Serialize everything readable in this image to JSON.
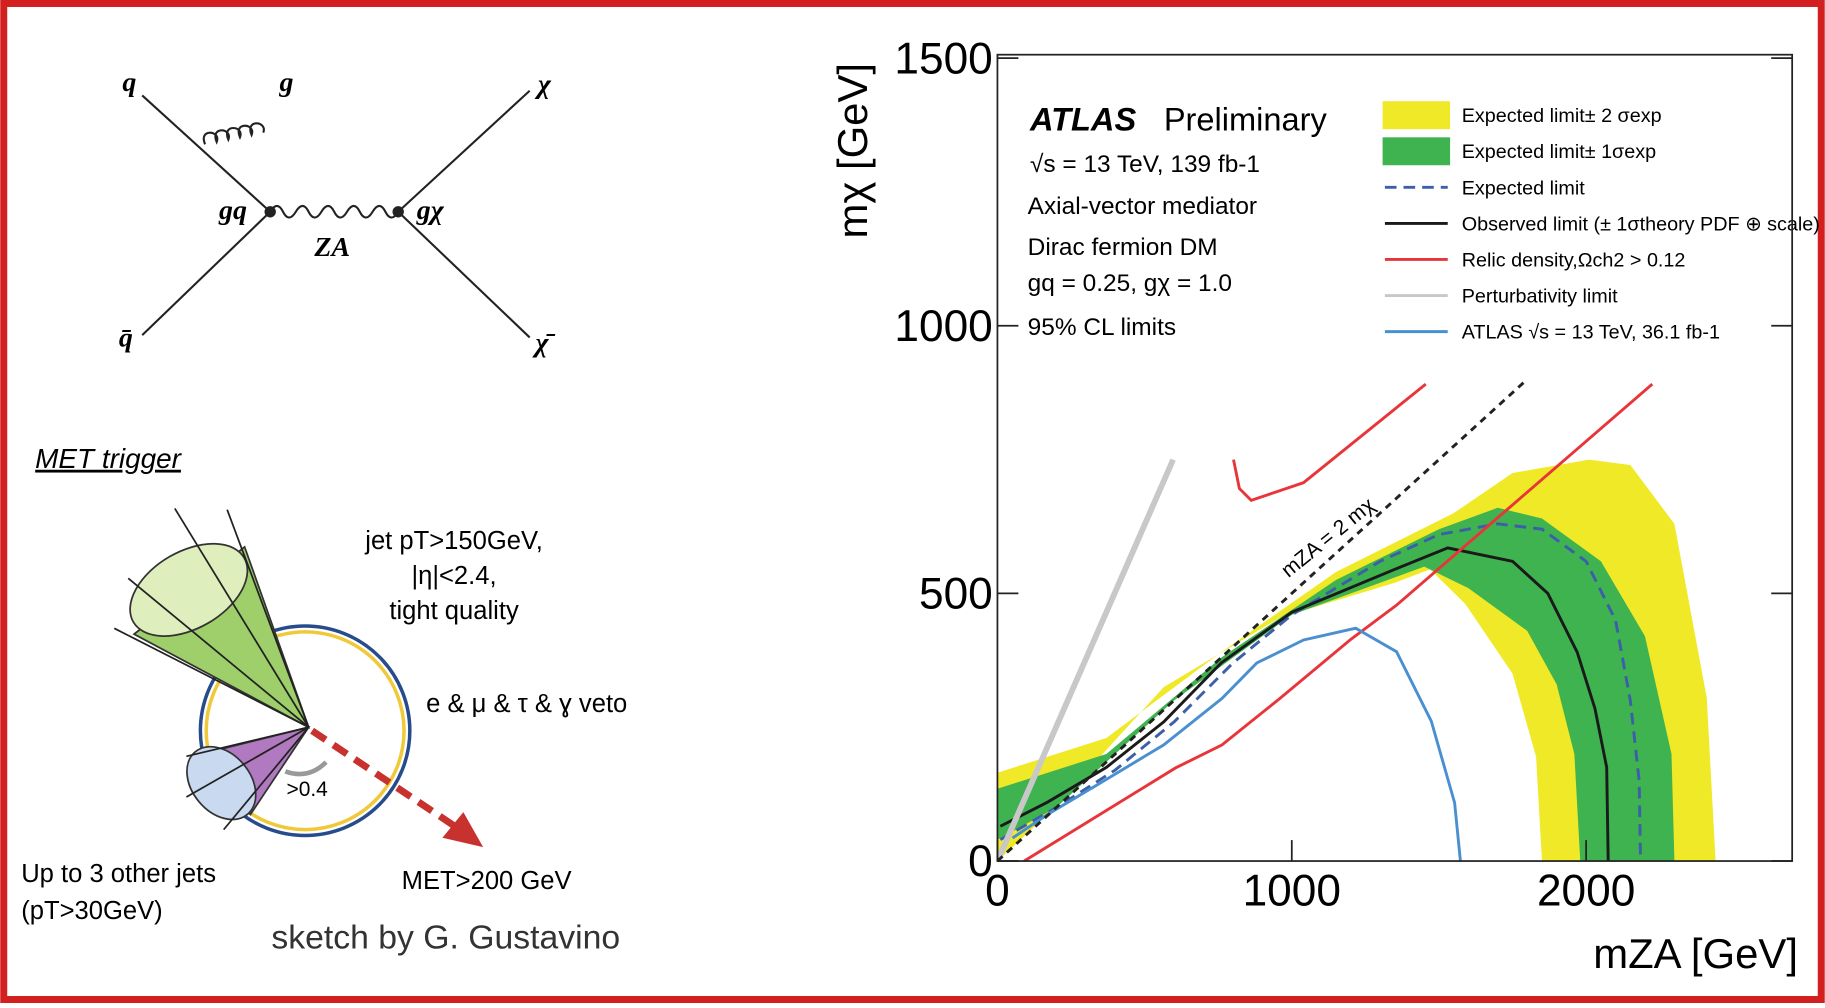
{
  "diagram": {
    "labels": [
      "q",
      "g",
      "gq",
      "ZA",
      "gχ",
      "χ",
      "q̄",
      "χ̄"
    ]
  },
  "sketch": {
    "title": "MET trigger",
    "jet_cut": [
      "jet pT>150GeV,",
      "|η|<2.4,",
      "tight quality"
    ],
    "veto": "e & μ & τ & ɣ veto",
    "angle": ">0.4",
    "other_jets": [
      "Up to 3 other jets",
      "(pT>30GeV)"
    ],
    "met": "MET>200 GeV",
    "credit": "sketch by G. Gustavino"
  },
  "chart_data": {
    "type": "contour",
    "x_label": "mZA [GeV]",
    "y_label": "mχ [GeV]",
    "annotations": [
      "ATLAS",
      "Preliminary",
      "√s = 13 TeV, 139 fb-1",
      "Axial-vector mediator",
      "Dirac fermion DM",
      "gq = 0.25, gχ = 1.0",
      "95% CL limits"
    ],
    "diagonal_label": "mZA = 2 mχ",
    "xlim": [
      0,
      2700
    ],
    "ylim": [
      0,
      1500
    ],
    "xticks": [
      0,
      1000,
      2000
    ],
    "yticks": [
      0,
      500,
      1000,
      1500
    ],
    "series": [
      {
        "name": "Expected limit± 2 σexp",
        "kind": "band",
        "color": "#f0e927",
        "x": [
          0,
          370,
          760,
          1150,
          1550,
          1750,
          2010,
          2150,
          2300,
          2410,
          2440,
          1850,
          1830,
          1750,
          1590,
          1470,
          1350,
          960,
          565,
          170,
          0
        ],
        "values": [
          165,
          230,
          390,
          540,
          650,
          725,
          750,
          740,
          630,
          305,
          0,
          0,
          195,
          350,
          480,
          545,
          520,
          455,
          325,
          87,
          0
        ]
      },
      {
        "name": "Expected limit± 1σexp",
        "kind": "band",
        "color": "#3fb34f",
        "x": [
          0,
          370,
          760,
          1150,
          1500,
          1700,
          1850,
          2050,
          2200,
          2290,
          2300,
          1980,
          1960,
          1900,
          1800,
          1600,
          1450,
          1000,
          600,
          200,
          0
        ],
        "values": [
          135,
          200,
          380,
          525,
          620,
          660,
          640,
          560,
          420,
          200,
          0,
          0,
          200,
          330,
          430,
          510,
          550,
          460,
          300,
          100,
          40
        ]
      },
      {
        "name": "Expected limit",
        "kind": "line",
        "dash": "10 6",
        "color": "#3b5fa8",
        "x": [
          10,
          200,
          400,
          600,
          800,
          1000,
          1300,
          1500,
          1700,
          1850,
          2000,
          2100,
          2150,
          2180,
          2185
        ],
        "values": [
          40,
          100,
          170,
          260,
          370,
          460,
          560,
          610,
          630,
          620,
          560,
          450,
          300,
          150,
          0
        ]
      },
      {
        "name": "Observed limit (± 1σtheory PDF ⊕ scale)",
        "kind": "line",
        "color": "#1a1a1a",
        "x": [
          10,
          170,
          370,
          565,
          760,
          1000,
          1350,
          1530,
          1750,
          1870,
          1970,
          2030,
          2070,
          2075
        ],
        "values": [
          65,
          110,
          175,
          260,
          370,
          465,
          545,
          585,
          560,
          500,
          390,
          285,
          175,
          0
        ]
      },
      {
        "name": "Relic density,Ωch2 > 0.12",
        "kind": "line",
        "color": "#e8353a",
        "x": [
          91,
          605,
          763,
          960,
          1198,
          1356,
          2225,
          null,
          802,
          822,
          862,
          1040,
          1455
        ],
        "values": [
          0,
          174,
          217,
          304,
          413,
          478,
          891,
          null,
          750,
          696,
          674,
          707,
          891
        ]
      },
      {
        "name": "Perturbativity limit",
        "kind": "line",
        "color": "#c8c8c8",
        "x": [
          0,
          597
        ],
        "values": [
          0,
          750
        ]
      },
      {
        "name": "ATLAS √s = 13 TeV, 36.1 fb-1",
        "kind": "line",
        "color": "#4a90d0",
        "x": [
          51,
          170,
          368,
          565,
          763,
          881,
          1040,
          1217,
          1356,
          1474,
          1553,
          1573
        ],
        "values": [
          43,
          87,
          152,
          217,
          304,
          370,
          413,
          435,
          391,
          261,
          109,
          0
        ]
      }
    ],
    "diagonal": {
      "x": [
        0,
        1800
      ],
      "values": [
        0,
        900
      ]
    }
  }
}
